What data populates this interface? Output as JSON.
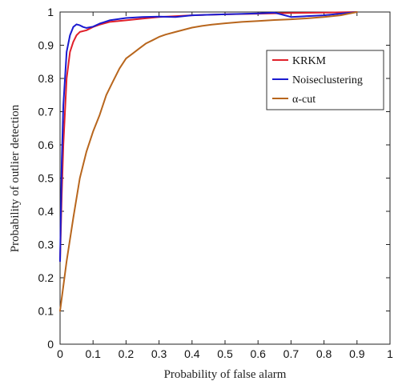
{
  "chart_data": {
    "type": "line",
    "title": "",
    "xlabel": "Probability of false alarm",
    "ylabel": "Probability of outlier detection",
    "xlim": [
      0,
      1
    ],
    "ylim": [
      0,
      1
    ],
    "x_ticks": [
      "0",
      "0.1",
      "0.2",
      "0.3",
      "0.4",
      "0.5",
      "0.6",
      "0.7",
      "0.8",
      "0.9",
      "1"
    ],
    "y_ticks": [
      "0",
      "0.1",
      "0.2",
      "0.3",
      "0.4",
      "0.5",
      "0.6",
      "0.7",
      "0.8",
      "0.9",
      "1"
    ],
    "grid": false,
    "legend_position": "upper-right",
    "series": [
      {
        "name": "KRKM",
        "color": "#e0202a",
        "x": [
          0.0,
          0.005,
          0.01,
          0.02,
          0.03,
          0.04,
          0.05,
          0.06,
          0.08,
          0.1,
          0.12,
          0.15,
          0.2,
          0.25,
          0.3,
          0.4,
          0.5,
          0.6,
          0.7,
          0.8,
          0.9
        ],
        "y": [
          0.25,
          0.45,
          0.6,
          0.8,
          0.88,
          0.91,
          0.93,
          0.94,
          0.945,
          0.955,
          0.962,
          0.97,
          0.975,
          0.98,
          0.985,
          0.99,
          0.993,
          0.995,
          0.997,
          0.998,
          1.0
        ]
      },
      {
        "name": "Noiseclustering",
        "color": "#1a1ad0",
        "x": [
          0.0,
          0.005,
          0.01,
          0.02,
          0.03,
          0.04,
          0.05,
          0.06,
          0.07,
          0.08,
          0.1,
          0.12,
          0.15,
          0.2,
          0.25,
          0.3,
          0.35,
          0.4,
          0.5,
          0.6,
          0.65,
          0.7,
          0.8,
          0.9
        ],
        "y": [
          0.25,
          0.55,
          0.72,
          0.88,
          0.93,
          0.955,
          0.963,
          0.96,
          0.955,
          0.952,
          0.956,
          0.965,
          0.975,
          0.982,
          0.985,
          0.986,
          0.985,
          0.99,
          0.993,
          0.996,
          0.998,
          0.985,
          0.99,
          1.0
        ]
      },
      {
        "name": "α-cut",
        "color": "#b8661d",
        "x": [
          0.0,
          0.02,
          0.04,
          0.06,
          0.08,
          0.1,
          0.12,
          0.14,
          0.16,
          0.18,
          0.2,
          0.22,
          0.24,
          0.26,
          0.28,
          0.3,
          0.32,
          0.35,
          0.38,
          0.4,
          0.43,
          0.46,
          0.5,
          0.55,
          0.6,
          0.65,
          0.7,
          0.75,
          0.8,
          0.85,
          0.9
        ],
        "y": [
          0.1,
          0.25,
          0.38,
          0.5,
          0.58,
          0.64,
          0.69,
          0.75,
          0.79,
          0.83,
          0.86,
          0.875,
          0.89,
          0.905,
          0.915,
          0.925,
          0.932,
          0.94,
          0.948,
          0.953,
          0.958,
          0.962,
          0.966,
          0.97,
          0.973,
          0.976,
          0.978,
          0.981,
          0.985,
          0.99,
          1.0
        ]
      }
    ]
  }
}
